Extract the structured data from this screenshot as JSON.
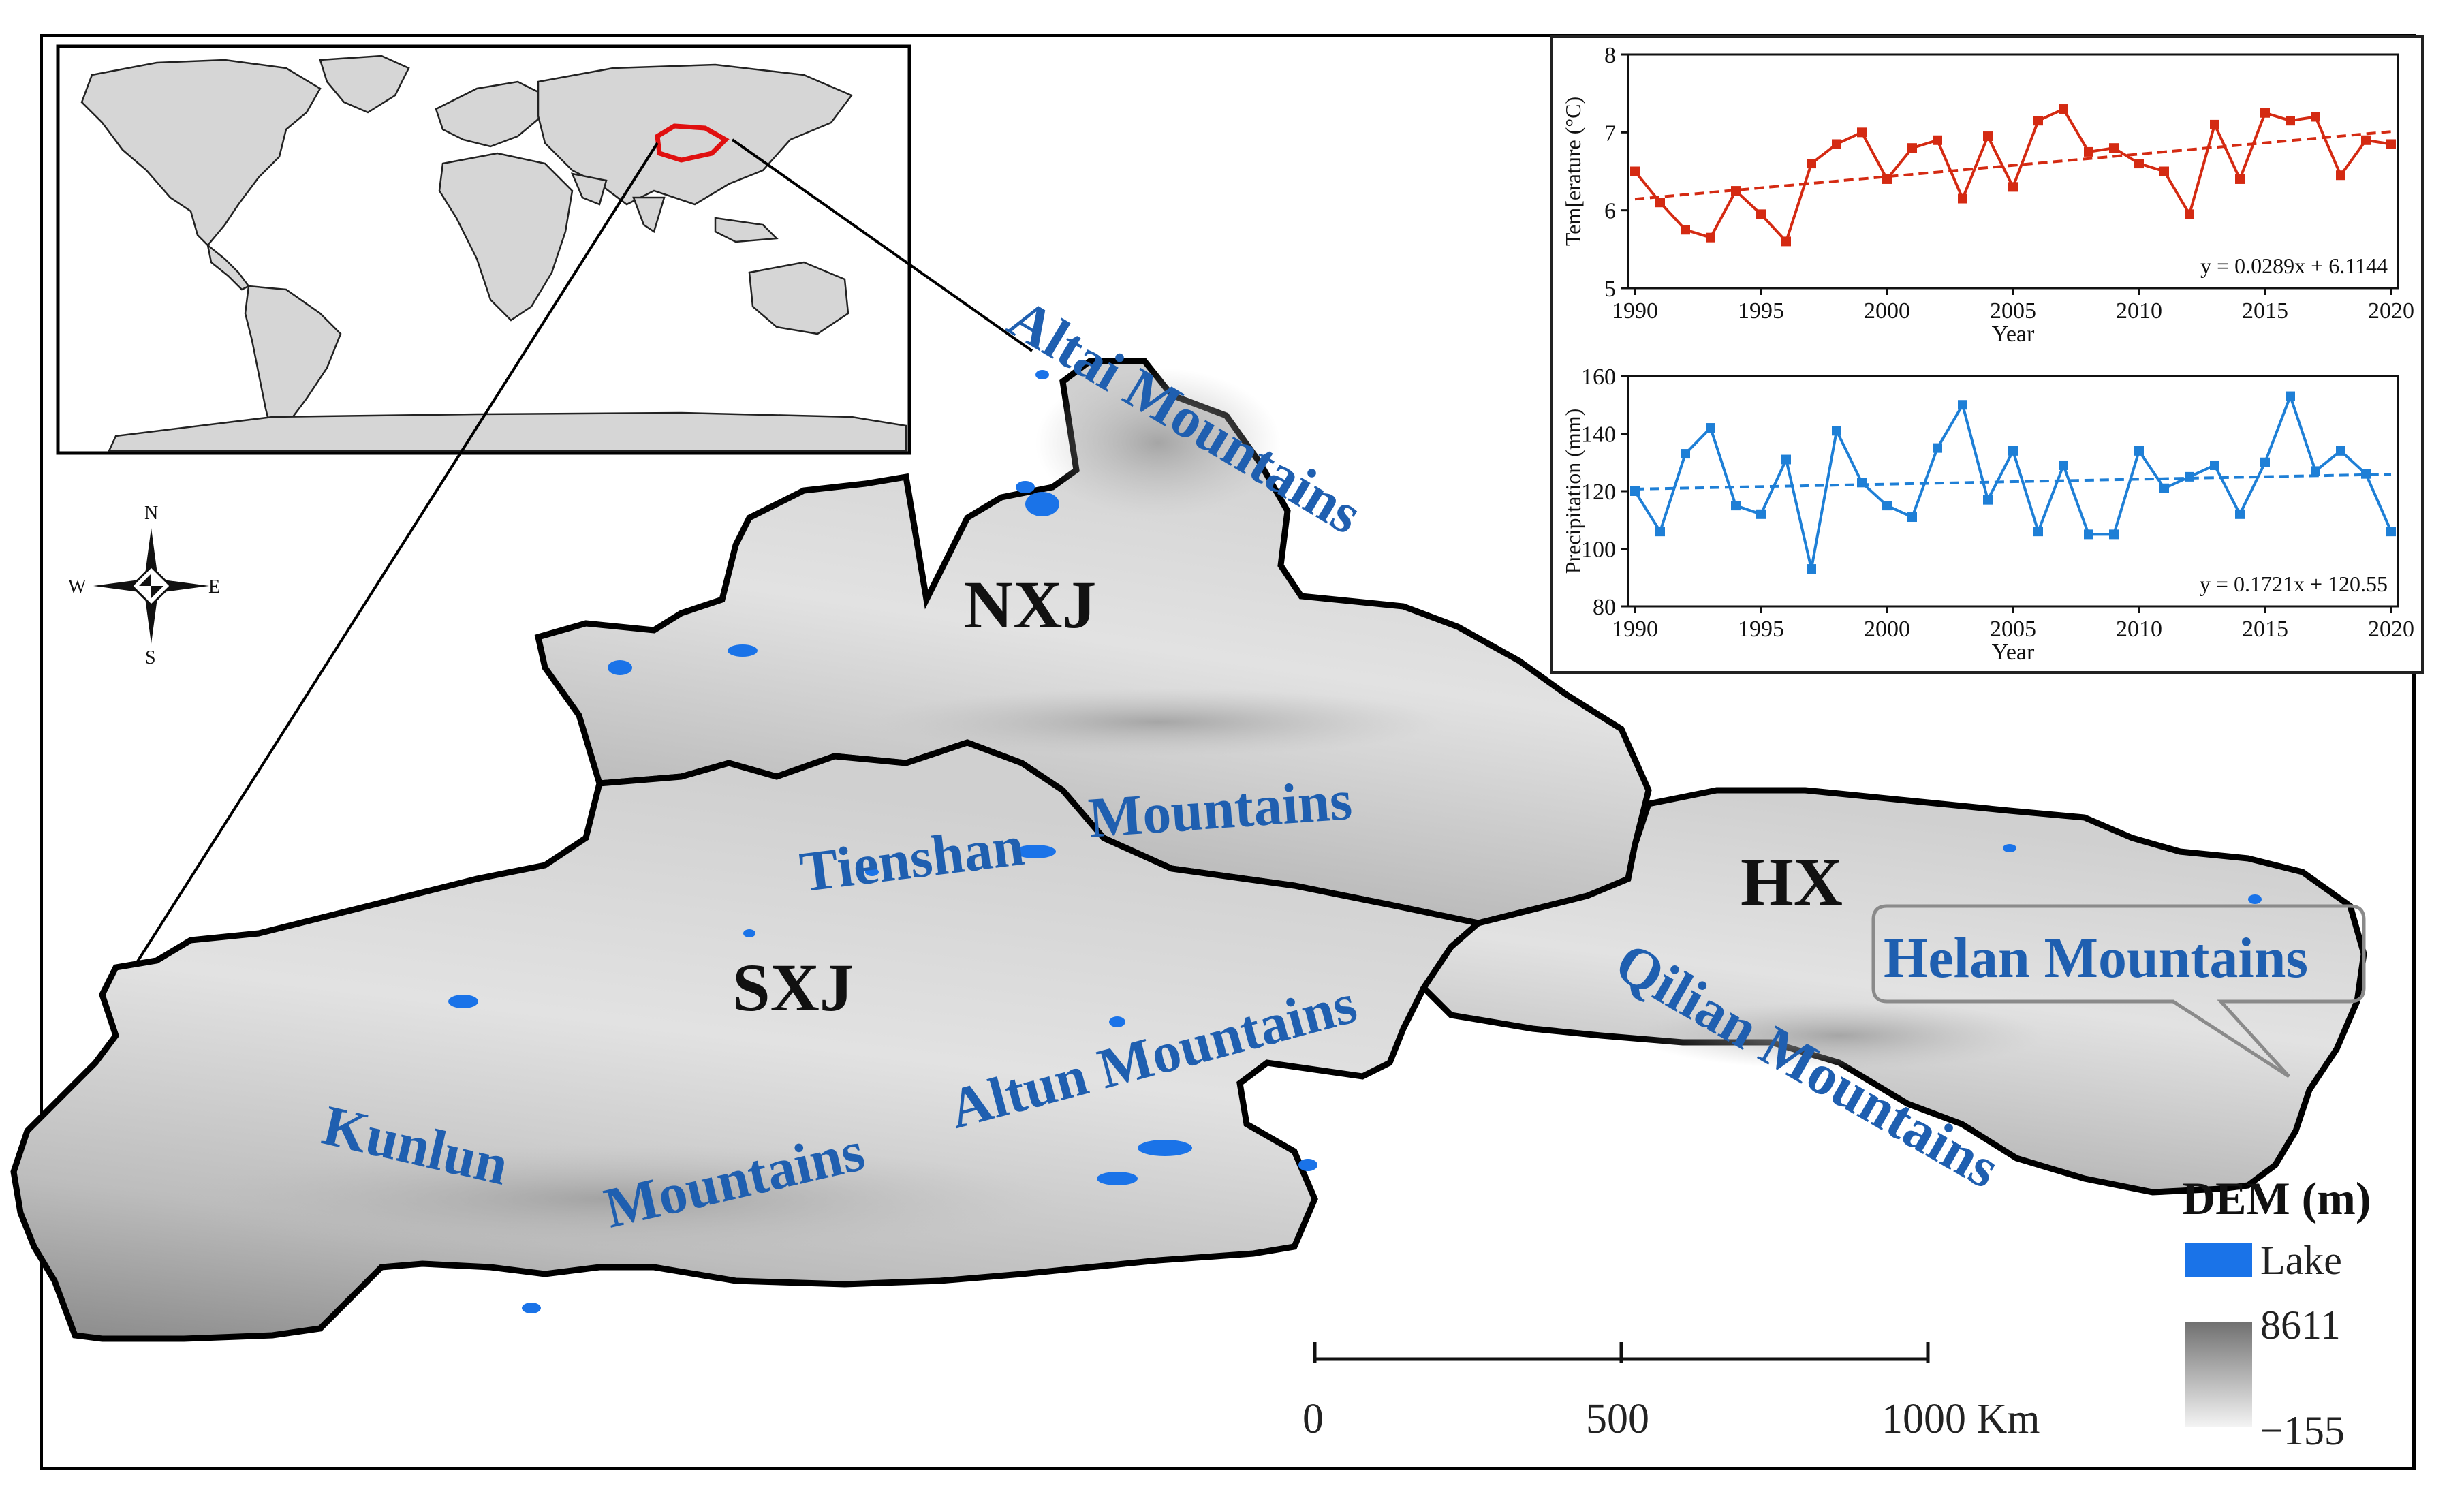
{
  "regions": {
    "nxj": "NXJ",
    "sxj": "SXJ",
    "hx": "HX"
  },
  "mountains": {
    "altai": "Altai Mountains",
    "tienshan_a": "Tienshan",
    "tienshan_b": "Mountains",
    "altun": "Altun Mountains",
    "kunlun_a": "Kunlun",
    "kunlun_b": "Mountains",
    "qilian": "Qilian Mountains",
    "helan": "Helan Mountains"
  },
  "compass": {
    "n": "N",
    "s": "S",
    "e": "E",
    "w": "W"
  },
  "scale_bar": {
    "ticks": [
      "0",
      "500",
      "1000 Km"
    ]
  },
  "legend": {
    "title": "DEM (m)",
    "lake_label": "Lake",
    "lake_color": "#1a73e8",
    "dem_max": "8611",
    "dem_min": "−155",
    "dem_high_color": "#707070",
    "dem_low_color": "#f4f4f4"
  },
  "chart_data": [
    {
      "type": "line",
      "xlabel": "Year",
      "ylabel": "Tem[erature (°C)",
      "color": "#d42a12",
      "xlim": [
        1990,
        2020
      ],
      "ylim": [
        5,
        8
      ],
      "xticks": [
        "1990",
        "1995",
        "2000",
        "2005",
        "2010",
        "2015",
        "2020"
      ],
      "yticks": [
        "5",
        "6",
        "7",
        "8"
      ],
      "equation": "y = 0.0289x + 6.1144",
      "trend": {
        "slope": 0.0289,
        "intercept": 6.1144
      },
      "x": [
        1990,
        1991,
        1992,
        1993,
        1994,
        1995,
        1996,
        1997,
        1998,
        1999,
        2000,
        2001,
        2002,
        2003,
        2004,
        2005,
        2006,
        2007,
        2008,
        2009,
        2010,
        2011,
        2012,
        2013,
        2014,
        2015,
        2016,
        2017,
        2018,
        2019,
        2020
      ],
      "y": [
        6.5,
        6.1,
        5.75,
        5.65,
        6.25,
        5.95,
        5.6,
        6.6,
        6.85,
        7.0,
        6.4,
        6.8,
        6.9,
        6.15,
        6.95,
        6.3,
        7.15,
        7.3,
        6.75,
        6.8,
        6.6,
        6.5,
        5.95,
        7.1,
        6.4,
        7.25,
        7.15,
        7.2,
        6.45,
        6.9,
        6.85
      ]
    },
    {
      "type": "line",
      "xlabel": "Year",
      "ylabel": "Precipitation (mm)",
      "color": "#1e7fd6",
      "xlim": [
        1990,
        2020
      ],
      "ylim": [
        80,
        160
      ],
      "xticks": [
        "1990",
        "1995",
        "2000",
        "2005",
        "2010",
        "2015",
        "2020"
      ],
      "yticks": [
        "80",
        "100",
        "120",
        "140",
        "160"
      ],
      "equation": "y = 0.1721x + 120.55",
      "trend": {
        "slope": 0.1721,
        "intercept": 120.55
      },
      "x": [
        1990,
        1991,
        1992,
        1993,
        1994,
        1995,
        1996,
        1997,
        1998,
        1999,
        2000,
        2001,
        2002,
        2003,
        2004,
        2005,
        2006,
        2007,
        2008,
        2009,
        2010,
        2011,
        2012,
        2013,
        2014,
        2015,
        2016,
        2017,
        2018,
        2019,
        2020
      ],
      "y": [
        120,
        106,
        133,
        142,
        115,
        112,
        131,
        93,
        141,
        123,
        115,
        111,
        135,
        150,
        117,
        134,
        106,
        129,
        105,
        105,
        134,
        121,
        125,
        129,
        112,
        130,
        153,
        127,
        134,
        126,
        106
      ]
    }
  ]
}
